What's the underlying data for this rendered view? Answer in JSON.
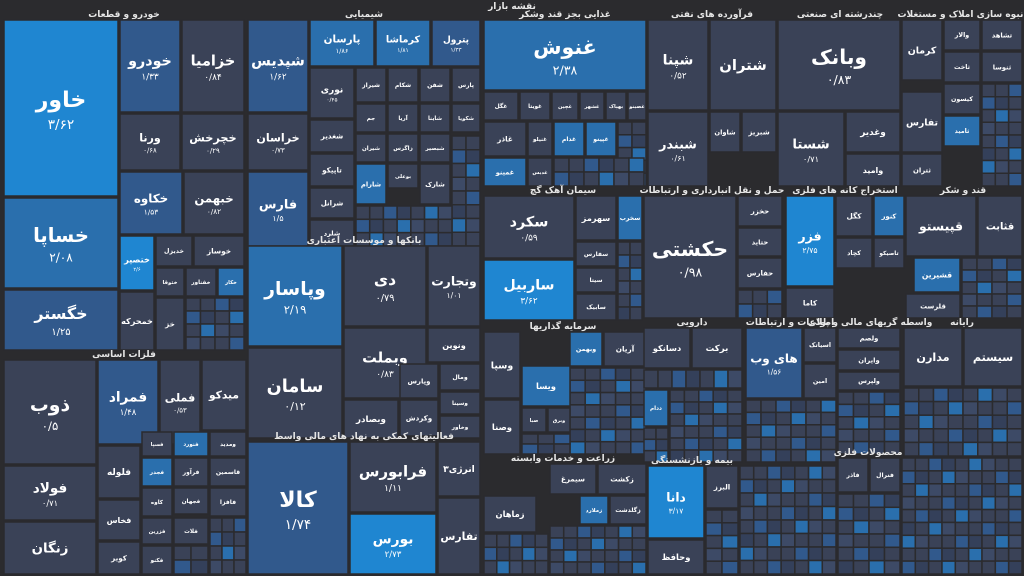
{
  "title": "نقشه بازار",
  "colors": {
    "background": "#2b2b2e",
    "neutral": "#3a4257",
    "mild": "#31598c",
    "medium": "#2a6fad",
    "strong": "#1f86d1"
  },
  "chart_data": {
    "type": "treemap",
    "title": "نقشه بازار",
    "sectors": [
      {
        "name": "خودرو و قطعات",
        "tiles": [
          {
            "symbol": "خاور",
            "value": "۳/۶۲",
            "change": 3.62
          },
          {
            "symbol": "خساپا",
            "value": "۲/۰۸",
            "change": 2.08
          },
          {
            "symbol": "خگستر",
            "value": "۱/۲۵",
            "change": 1.25
          },
          {
            "symbol": "خودرو",
            "value": "۱/۳۳",
            "change": 1.33
          },
          {
            "symbol": "خزامیا",
            "value": "۰/۸۴",
            "change": 0.84
          },
          {
            "symbol": "ورنا",
            "value": "۰/۶۸",
            "change": 0.68
          },
          {
            "symbol": "خچرخش",
            "value": "۰/۲۹",
            "change": 0.29
          },
          {
            "symbol": "خکاوه",
            "value": "۱/۵۳",
            "change": 1.53
          },
          {
            "symbol": "خبهمن",
            "value": "۰/۸۲",
            "change": 0.82
          },
          {
            "symbol": "ختصیر",
            "value": "۲/۶",
            "change": 2.6
          },
          {
            "symbol": "خدیزل",
            "value": "",
            "change": 1.0
          },
          {
            "symbol": "خوساز",
            "value": "",
            "change": 1.0
          },
          {
            "symbol": "خمحرکه",
            "value": "",
            "change": 0.8
          },
          {
            "symbol": "ختوقا",
            "value": "",
            "change": 1.0
          },
          {
            "symbol": "خفناور",
            "value": "",
            "change": 1.0
          },
          {
            "symbol": "خکار",
            "value": "",
            "change": 2.0
          },
          {
            "symbol": "خز",
            "value": "",
            "change": 0.5
          }
        ]
      },
      {
        "name": "شیمیایی",
        "tiles": [
          {
            "symbol": "شپدیس",
            "value": "۱/۶۲",
            "change": 1.62
          },
          {
            "symbol": "پارسان",
            "value": "۱/۸۶",
            "change": 1.86
          },
          {
            "symbol": "کرماشا",
            "value": "۱/۸۱",
            "change": 1.81
          },
          {
            "symbol": "پترول",
            "value": "۱/۳۳",
            "change": 1.33
          },
          {
            "symbol": "خراسان",
            "value": "۰/۷۳",
            "change": 0.73
          },
          {
            "symbol": "فارس",
            "value": "۱/۵",
            "change": 1.5
          },
          {
            "symbol": "نوری",
            "value": "۰/۴۵",
            "change": 0.45
          },
          {
            "symbol": "شیراز",
            "value": "",
            "change": 0.9
          },
          {
            "symbol": "شکام",
            "value": "",
            "change": 0.9
          },
          {
            "symbol": "شفن",
            "value": "",
            "change": 0.9
          },
          {
            "symbol": "پارس",
            "value": "",
            "change": 0.9
          },
          {
            "symbol": "شغدیر",
            "value": "",
            "change": 0.9
          },
          {
            "symbol": "جم",
            "value": "",
            "change": 0.9
          },
          {
            "symbol": "آریا",
            "value": "",
            "change": 0.9
          },
          {
            "symbol": "شاینا",
            "value": "",
            "change": 0.9
          },
          {
            "symbol": "شکویا",
            "value": "",
            "change": 0.9
          },
          {
            "symbol": "تاپیکو",
            "value": "",
            "change": 0.9
          },
          {
            "symbol": "شیران",
            "value": "",
            "change": 0.9
          },
          {
            "symbol": "زاگرس",
            "value": "",
            "change": 0.9
          },
          {
            "symbol": "شبصیر",
            "value": "",
            "change": 0.9
          },
          {
            "symbol": "شرانل",
            "value": "",
            "change": 0.9
          },
          {
            "symbol": "شارک",
            "value": "",
            "change": 0.9
          },
          {
            "symbol": "شارام",
            "value": "",
            "change": 2.0
          },
          {
            "symbol": "بوعلی",
            "value": "",
            "change": 0.9
          },
          {
            "symbol": "شلرد",
            "value": "",
            "change": 0.9
          }
        ]
      },
      {
        "name": "بانکها و موسسات اعتباری",
        "tiles": [
          {
            "symbol": "وپاسار",
            "value": "۲/۱۹",
            "change": 2.19
          },
          {
            "symbol": "دی",
            "value": "۰/۷۹",
            "change": 0.79
          },
          {
            "symbol": "وتجارت",
            "value": "۱/۰۱",
            "change": 1.01
          },
          {
            "symbol": "سامان",
            "value": "۰/۱۲",
            "change": 0.12
          },
          {
            "symbol": "وبملت",
            "value": "۰/۸۳",
            "change": 0.83
          },
          {
            "symbol": "وکردش",
            "value": "",
            "change": 0.9
          },
          {
            "symbol": "ونوین",
            "value": "",
            "change": 0.9
          },
          {
            "symbol": "وبصادر",
            "value": "",
            "change": 0.9
          },
          {
            "symbol": "ومال",
            "value": "",
            "change": 0.9
          },
          {
            "symbol": "وسینا",
            "value": "",
            "change": 0.9
          },
          {
            "symbol": "وخاور",
            "value": "",
            "change": 0.9
          },
          {
            "symbol": "وپارس",
            "value": "",
            "change": 0.9
          }
        ]
      },
      {
        "name": "فلزات اساسی",
        "tiles": [
          {
            "symbol": "ذوب",
            "value": "۰/۵",
            "change": 0.5
          },
          {
            "symbol": "فولاد",
            "value": "۰/۷۱",
            "change": 0.71
          },
          {
            "symbol": "زنگان",
            "value": "",
            "change": 0.9
          },
          {
            "symbol": "فمراد",
            "value": "۱/۴۸",
            "change": 1.48
          },
          {
            "symbol": "فملی",
            "value": "۰/۵۳",
            "change": 0.53
          },
          {
            "symbol": "میدکو",
            "value": "",
            "change": 0.9
          },
          {
            "symbol": "فلوله",
            "value": "",
            "change": 0.9
          },
          {
            "symbol": "فسپا",
            "value": "",
            "change": 0.9
          },
          {
            "symbol": "فنورد",
            "value": "",
            "change": 2.0
          },
          {
            "symbol": "ومدید",
            "value": "",
            "change": 0.9
          },
          {
            "symbol": "فخاس",
            "value": "",
            "change": 0.9
          },
          {
            "symbol": "فجدر",
            "value": "",
            "change": 2.0
          },
          {
            "symbol": "فرآور",
            "value": "",
            "change": 0.9
          },
          {
            "symbol": "قاسمین",
            "value": "",
            "change": 0.9
          },
          {
            "symbol": "کویر",
            "value": "",
            "change": 0.9
          },
          {
            "symbol": "کاوه",
            "value": "",
            "change": 0.9
          },
          {
            "symbol": "فافزا",
            "value": "",
            "change": 0.9
          },
          {
            "symbol": "فزرین",
            "value": "",
            "change": 0.9
          },
          {
            "symbol": "فجهان",
            "value": "",
            "change": 0.9
          },
          {
            "symbol": "فلات",
            "value": "",
            "change": 0.9
          },
          {
            "symbol": "فکنو",
            "value": "",
            "change": 0.9
          }
        ]
      },
      {
        "name": "فعالیتهای کمکی به نهاد های مالی واسط",
        "tiles": [
          {
            "symbol": "کالا",
            "value": "۱/۷۴",
            "change": 1.74
          },
          {
            "symbol": "فرابورس",
            "value": "۱/۱۱",
            "change": 1.11
          },
          {
            "symbol": "انرژی۳",
            "value": "",
            "change": 0.9
          },
          {
            "symbol": "بورس",
            "value": "۲/۷۳",
            "change": 2.73
          },
          {
            "symbol": "تفارس",
            "value": "",
            "change": 0.9
          }
        ]
      },
      {
        "name": "غذایی بجز قند وشکر",
        "tiles": [
          {
            "symbol": "غنوش",
            "value": "۲/۳۸",
            "change": 2.38
          },
          {
            "symbol": "غگل",
            "value": "",
            "change": 0.9
          },
          {
            "symbol": "غویتا",
            "value": "",
            "change": 0.9
          },
          {
            "symbol": "غچین",
            "value": "",
            "change": 0.9
          },
          {
            "symbol": "غشهر",
            "value": "",
            "change": 0.9
          },
          {
            "symbol": "بهپاک",
            "value": "",
            "change": 0.9
          },
          {
            "symbol": "غصینو",
            "value": "",
            "change": 0.9
          },
          {
            "symbol": "غنیلو",
            "value": "",
            "change": 0.9
          },
          {
            "symbol": "غدام",
            "value": "",
            "change": 2.0
          },
          {
            "symbol": "غپینو",
            "value": "",
            "change": 2.0
          },
          {
            "symbol": "غاذر",
            "value": "",
            "change": 0.9
          },
          {
            "symbol": "غمینو",
            "value": "",
            "change": 2.0
          },
          {
            "symbol": "غدیس",
            "value": "",
            "change": 0.9
          }
        ]
      },
      {
        "name": "فرآورده های نفتی",
        "tiles": [
          {
            "symbol": "شپنا",
            "value": "۰/۵۲",
            "change": 0.52
          },
          {
            "symbol": "شتران",
            "value": "",
            "change": 0.9
          },
          {
            "symbol": "شبندر",
            "value": "۰/۶۱",
            "change": 0.61
          },
          {
            "symbol": "شاوان",
            "value": "",
            "change": 0.9
          },
          {
            "symbol": "شبریز",
            "value": "",
            "change": 0.9
          }
        ]
      },
      {
        "name": "چندرشته ای صنعتی",
        "tiles": [
          {
            "symbol": "وبانک",
            "value": "۰/۸۳",
            "change": 0.83
          },
          {
            "symbol": "شستا",
            "value": "۰/۷۱",
            "change": 0.71
          },
          {
            "symbol": "وغدیر",
            "value": "",
            "change": 0.9
          },
          {
            "symbol": "وامید",
            "value": "",
            "change": 0.9
          }
        ]
      },
      {
        "name": "انبوه سازی املاک و مستغلات",
        "tiles": [
          {
            "symbol": "کرمان",
            "value": "",
            "change": 0.9
          },
          {
            "symbol": "والار",
            "value": "",
            "change": 0.9
          },
          {
            "symbol": "تشاهد",
            "value": "",
            "change": 0.9
          },
          {
            "symbol": "ثاخت",
            "value": "",
            "change": 0.9
          },
          {
            "symbol": "ثنوسا",
            "value": "",
            "change": 0.9
          },
          {
            "symbol": "تفارس",
            "value": "",
            "change": 0.9
          },
          {
            "symbol": "کیسون",
            "value": "",
            "change": 0.9
          },
          {
            "symbol": "ثامید",
            "value": "",
            "change": 2.0
          },
          {
            "symbol": "ثتران",
            "value": "",
            "change": 0.9
          }
        ]
      },
      {
        "name": "سیمان آهک گچ",
        "tiles": [
          {
            "symbol": "سکرد",
            "value": "۰/۵۹",
            "change": 0.59
          },
          {
            "symbol": "ساربیل",
            "value": "۳/۶۲",
            "change": 3.62
          },
          {
            "symbol": "سهرمز",
            "value": "",
            "change": 0.9
          },
          {
            "symbol": "سفارس",
            "value": "",
            "change": 0.9
          },
          {
            "symbol": "سیتا",
            "value": "",
            "change": 0.9
          },
          {
            "symbol": "سابیک",
            "value": "",
            "change": 0.9
          },
          {
            "symbol": "سخرب",
            "value": "",
            "change": 2.0
          }
        ]
      },
      {
        "name": "حمل و نقل انبارداری و ارتباطات",
        "tiles": [
          {
            "symbol": "حکشتی",
            "value": "۰/۹۸",
            "change": 0.98
          },
          {
            "symbol": "حخزر",
            "value": "",
            "change": 0.9
          },
          {
            "symbol": "حتاید",
            "value": "",
            "change": 0.9
          },
          {
            "symbol": "حفارس",
            "value": "",
            "change": 0.9
          }
        ]
      },
      {
        "name": "استخراج کانه های فلزی",
        "tiles": [
          {
            "symbol": "فزر",
            "value": "۲/۷۵",
            "change": 2.75
          },
          {
            "symbol": "کگل",
            "value": "",
            "change": 0.9
          },
          {
            "symbol": "کنور",
            "value": "",
            "change": 2.0
          },
          {
            "symbol": "کچاد",
            "value": "",
            "change": 0.9
          },
          {
            "symbol": "کاما",
            "value": "",
            "change": 0.9
          },
          {
            "symbol": "تاصیکو",
            "value": "",
            "change": 0.9
          }
        ]
      },
      {
        "name": "قند و شکر",
        "tiles": [
          {
            "symbol": "قپیستو",
            "value": "",
            "change": 0.9
          },
          {
            "symbol": "قشیرین",
            "value": "",
            "change": 2.0
          },
          {
            "symbol": "قلرست",
            "value": "",
            "change": 0.9
          },
          {
            "symbol": "قثابت",
            "value": "",
            "change": 0.9
          }
        ]
      },
      {
        "name": "سرمایه گذاریها",
        "tiles": [
          {
            "symbol": "وبهمن",
            "value": "",
            "change": 2.0
          },
          {
            "symbol": "آریان",
            "value": "",
            "change": 0.9
          },
          {
            "symbol": "وسپا",
            "value": "",
            "change": 0.9
          },
          {
            "symbol": "ویسا",
            "value": "",
            "change": 2.0
          },
          {
            "symbol": "وبرق",
            "value": "",
            "change": 0.9
          },
          {
            "symbol": "صبا",
            "value": "",
            "change": 0.9
          },
          {
            "symbol": "وصنا",
            "value": "",
            "change": 0.9
          }
        ]
      },
      {
        "name": "زراعت و خدمات وابسته",
        "tiles": [
          {
            "symbol": "سیمرغ",
            "value": "",
            "change": 0.9
          },
          {
            "symbol": "زکشت",
            "value": "",
            "change": 0.9
          },
          {
            "symbol": "زملارد",
            "value": "",
            "change": 2.0
          },
          {
            "symbol": "زگلدشت",
            "value": "",
            "change": 0.9
          },
          {
            "symbol": "زماهان",
            "value": "",
            "change": 0.9
          }
        ]
      },
      {
        "name": "بیمه و بازنشستگی",
        "tiles": [
          {
            "symbol": "دانا",
            "value": "۳/۱۷",
            "change": 3.17
          },
          {
            "symbol": "البرز",
            "value": "",
            "change": 0.9
          },
          {
            "symbol": "وحافظ",
            "value": "",
            "change": 0.9
          }
        ]
      },
      {
        "name": "دارویی",
        "tiles": [
          {
            "symbol": "دسانکو",
            "value": "",
            "change": 0.9
          },
          {
            "symbol": "برکت",
            "value": "",
            "change": 0.9
          },
          {
            "symbol": "ددام",
            "value": "",
            "change": 2.0
          }
        ]
      },
      {
        "name": "اطلاعات و ارتباطات",
        "tiles": [
          {
            "symbol": "های وب",
            "value": "۱/۵۶",
            "change": 1.56
          },
          {
            "symbol": "اسیاتک",
            "value": "",
            "change": 0.9
          },
          {
            "symbol": "امین",
            "value": "",
            "change": 0.9
          }
        ]
      },
      {
        "name": "واسطه گریهای مالی و پولی",
        "tiles": [
          {
            "symbol": "ولصم",
            "value": "",
            "change": 0.9
          },
          {
            "symbol": "وایران",
            "value": "",
            "change": 0.9
          },
          {
            "symbol": "ولپرس",
            "value": "",
            "change": 0.9
          }
        ]
      },
      {
        "name": "رایانه",
        "tiles": [
          {
            "symbol": "مدارن",
            "value": "",
            "change": 0.9
          },
          {
            "symbol": "سیستم",
            "value": "",
            "change": 0.9
          }
        ]
      },
      {
        "name": "محصولات فلزی",
        "tiles": [
          {
            "symbol": "فاذر",
            "value": "",
            "change": 0.9
          },
          {
            "symbol": "فنرال",
            "value": "",
            "change": 0.9
          }
        ]
      }
    ]
  }
}
